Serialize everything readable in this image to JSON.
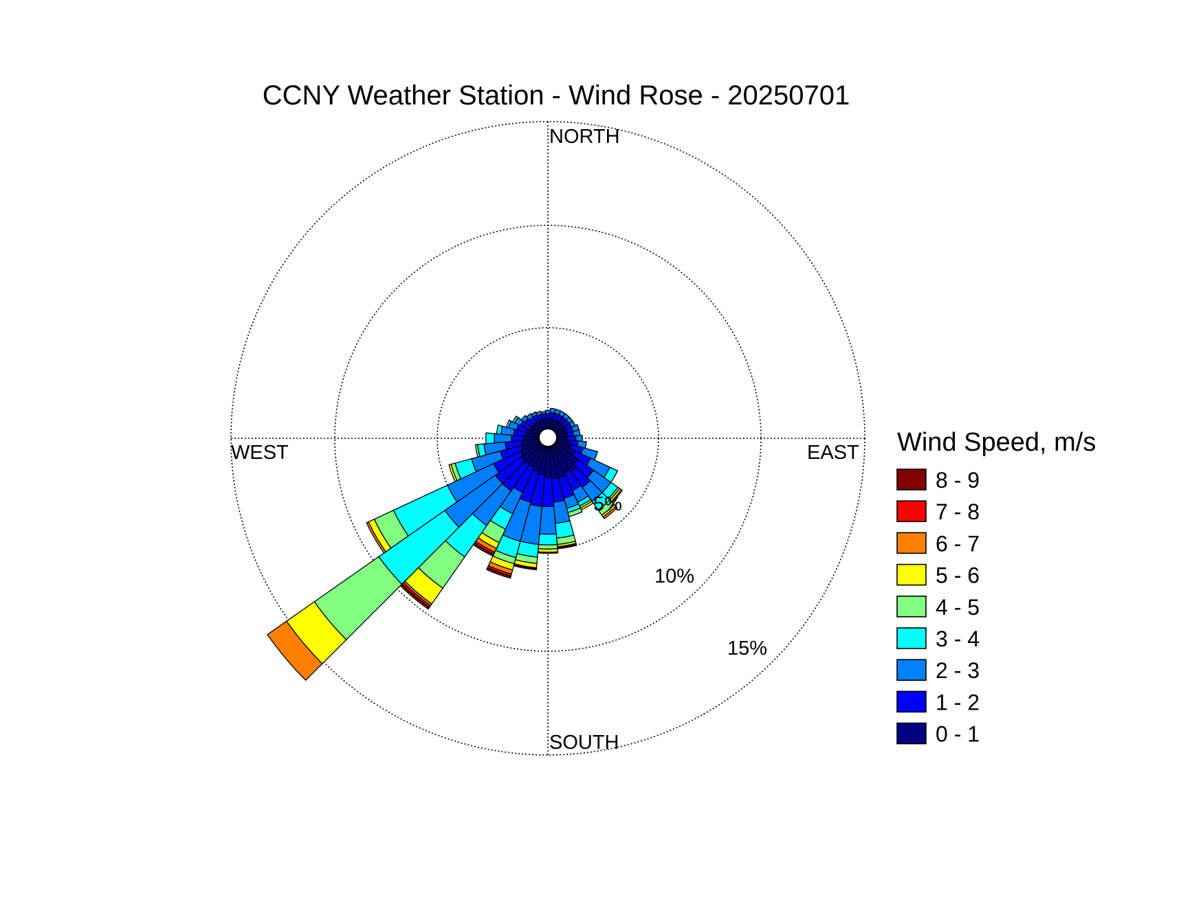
{
  "chart_data": {
    "type": "wind-rose",
    "title": "CCNY Weather Station - Wind Rose - 20250701",
    "direction_labels": {
      "north": "NORTH",
      "east": "EAST",
      "south": "SOUTH",
      "west": "WEST"
    },
    "rings": [
      {
        "value": 5,
        "label": "5%"
      },
      {
        "value": 10,
        "label": "10%"
      },
      {
        "value": 15,
        "label": "15%"
      }
    ],
    "legend": {
      "title": "Wind Speed, m/s",
      "bins": [
        {
          "label": "8 - 9",
          "color": "#800000"
        },
        {
          "label": "7 - 8",
          "color": "#ff0000"
        },
        {
          "label": "6 - 7",
          "color": "#ff8000"
        },
        {
          "label": "5 - 6",
          "color": "#ffff00"
        },
        {
          "label": "4 - 5",
          "color": "#80ff80"
        },
        {
          "label": "3 - 4",
          "color": "#00ffff"
        },
        {
          "label": "2 - 3",
          "color": "#0080ff"
        },
        {
          "label": "1 - 2",
          "color": "#0000ff"
        },
        {
          "label": "0 - 1",
          "color": "#000080"
        }
      ]
    },
    "speed_bins_order_inner_to_outer": [
      "0 - 1",
      "1 - 2",
      "2 - 3",
      "3 - 4",
      "4 - 5",
      "5 - 6",
      "6 - 7",
      "7 - 8",
      "8 - 9"
    ],
    "sector_width_deg": 10,
    "directions_deg": [
      0,
      10,
      20,
      30,
      40,
      50,
      60,
      70,
      80,
      90,
      100,
      110,
      120,
      130,
      140,
      150,
      160,
      170,
      180,
      190,
      200,
      210,
      220,
      230,
      240,
      250,
      260,
      270,
      280,
      290,
      300,
      310,
      320,
      330,
      340,
      350
    ],
    "cumulative_percent": [
      [
        0.5,
        0.75,
        0.9
      ],
      [
        0.5,
        0.8,
        1.0
      ],
      [
        0.5,
        0.8,
        1.0
      ],
      [
        0.5,
        0.8,
        1.0
      ],
      [
        0.5,
        0.8,
        1.0
      ],
      [
        0.5,
        0.8,
        1.0
      ],
      [
        0.5,
        0.8,
        1.0
      ],
      [
        0.5,
        0.8,
        1.1
      ],
      [
        0.5,
        0.8,
        1.1
      ],
      [
        0.5,
        0.9,
        1.2
      ],
      [
        0.6,
        1.0,
        1.4
      ],
      [
        0.7,
        1.3,
        2.0
      ],
      [
        1.0,
        1.8,
        2.8,
        3.2
      ],
      [
        1.3,
        2.2,
        3.2,
        3.6,
        3.7,
        3.8,
        3.85
      ],
      [
        1.5,
        2.4,
        3.2,
        3.7,
        4.0,
        4.1,
        4.2
      ],
      [
        1.4,
        2.3,
        2.9,
        3.1,
        3.2,
        3.3
      ],
      [
        1.5,
        2.5,
        3.0,
        3.2,
        3.4
      ],
      [
        1.5,
        2.6,
        3.6,
        4.3,
        4.6,
        4.7,
        4.75,
        4.8
      ],
      [
        1.4,
        2.8,
        4.1,
        4.6,
        4.8,
        4.95,
        5.0
      ],
      [
        1.3,
        2.8,
        4.6,
        5.2,
        5.5,
        5.7,
        5.75,
        5.8
      ],
      [
        1.2,
        2.7,
        4.6,
        5.4,
        5.7,
        6.0,
        6.2,
        6.3,
        6.4
      ],
      [
        1.1,
        2.4,
        3.5,
        4.3,
        5.0,
        5.3,
        5.5,
        5.6,
        5.7
      ],
      [
        1.1,
        2.6,
        4.6,
        6.4,
        8.2,
        9.1,
        9.2,
        9.3,
        9.4
      ],
      [
        1.1,
        2.6,
        5.5,
        9.3,
        13.0,
        14.6,
        15.7
      ],
      [
        1.0,
        2.4,
        4.8,
        7.6,
        8.6,
        8.9,
        9.0
      ],
      [
        0.9,
        1.9,
        3.3,
        4.1,
        4.3,
        4.4
      ],
      [
        0.8,
        1.6,
        2.6,
        2.9,
        3.0
      ],
      [
        0.7,
        1.3,
        2.1,
        2.5
      ],
      [
        0.6,
        1.2,
        1.8,
        2.0
      ],
      [
        0.6,
        1.1,
        1.5,
        1.6
      ],
      [
        0.5,
        1.0,
        1.3,
        1.4
      ],
      [
        0.5,
        0.9,
        1.1
      ],
      [
        0.5,
        0.8,
        1.0
      ],
      [
        0.5,
        0.8,
        0.95
      ],
      [
        0.5,
        0.75,
        0.9
      ],
      [
        0.5,
        0.75,
        0.85
      ]
    ]
  }
}
